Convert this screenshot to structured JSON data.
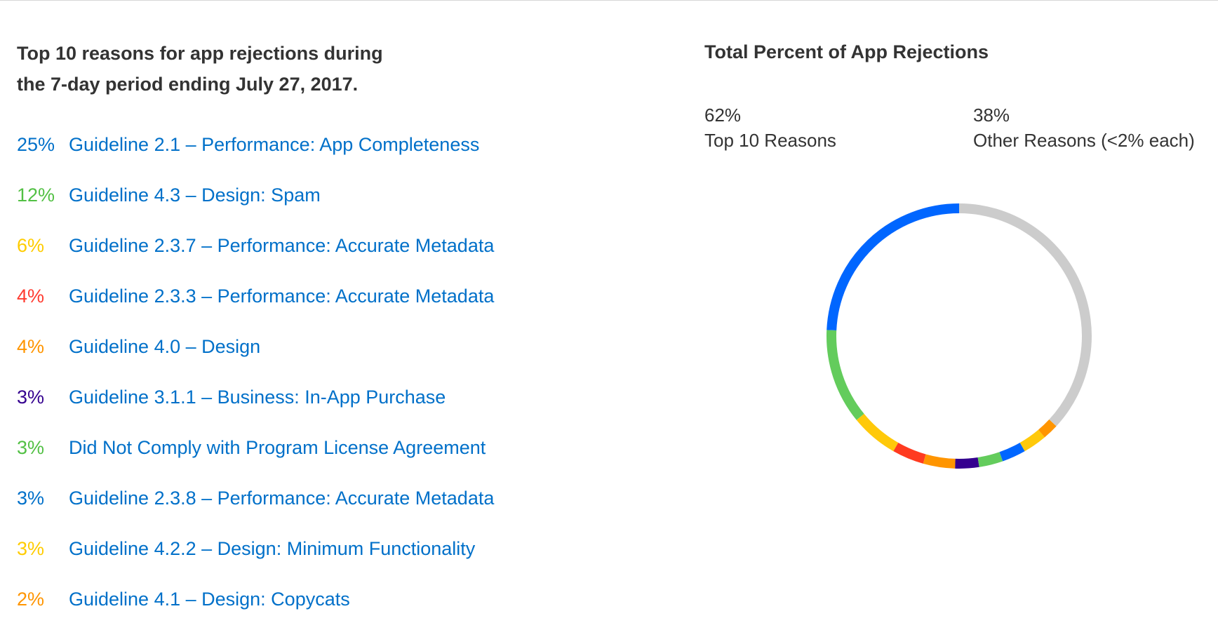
{
  "left_title_line1": "Top 10 reasons for app rejections during",
  "left_title_line2": "the 7-day period ending July 27, 2017.",
  "right_title": "Total Percent of App Rejections",
  "summary": [
    {
      "percent": "62%",
      "label": "Top 10 Reasons"
    },
    {
      "percent": "38%",
      "label": "Other Reasons (<2% each)"
    }
  ],
  "reasons": [
    {
      "percent": "25%",
      "label": "Guideline 2.1 – Performance: App Completeness",
      "color": "#0070c9"
    },
    {
      "percent": "12%",
      "label": "Guideline 4.3 – Design: Spam",
      "color": "#52c044"
    },
    {
      "percent": "6%",
      "label": "Guideline 2.3.7 – Performance: Accurate Metadata",
      "color": "#ffcc00"
    },
    {
      "percent": "4%",
      "label": "Guideline 2.3.3 – Performance: Accurate Metadata",
      "color": "#ff3b30"
    },
    {
      "percent": "4%",
      "label": "Guideline 4.0 – Design",
      "color": "#ff9500"
    },
    {
      "percent": "3%",
      "label": "Guideline 3.1.1 – Business: In-App Purchase",
      "color": "#34008f"
    },
    {
      "percent": "3%",
      "label": "Did Not Comply with Program License Agreement",
      "color": "#52c044"
    },
    {
      "percent": "3%",
      "label": "Guideline 2.3.8 – Performance: Accurate Metadata",
      "color": "#0070c9"
    },
    {
      "percent": "3%",
      "label": "Guideline 4.2.2 – Design: Minimum Functionality",
      "color": "#ffcc00"
    },
    {
      "percent": "2%",
      "label": "Guideline 4.1 – Design: Copycats",
      "color": "#ff9500"
    }
  ],
  "chart_data": {
    "type": "pie",
    "donut": true,
    "labels": [
      "Guideline 2.1 – Performance: App Completeness",
      "Guideline 4.3 – Design: Spam",
      "Guideline 2.3.7 – Performance: Accurate Metadata",
      "Guideline 2.3.3 – Performance: Accurate Metadata",
      "Guideline 4.0 – Design",
      "Guideline 3.1.1 – Business: In-App Purchase",
      "Did Not Comply with Program License Agreement",
      "Guideline 2.3.8 – Performance: Accurate Metadata",
      "Guideline 4.2.2 – Design: Minimum Functionality",
      "Guideline 4.1 – Design: Copycats",
      "Other Reasons (<2% each)"
    ],
    "values": [
      25,
      12,
      6,
      4,
      4,
      3,
      3,
      3,
      3,
      2,
      38
    ],
    "colors": [
      "#0066ff",
      "#63cc5c",
      "#ffc90a",
      "#ff3b20",
      "#ff9500",
      "#34008f",
      "#63cc5c",
      "#0066ff",
      "#ffc90a",
      "#ff9500",
      "#cccccc"
    ],
    "direction": "counterclockwise",
    "title": "Total Percent of App Rejections"
  }
}
